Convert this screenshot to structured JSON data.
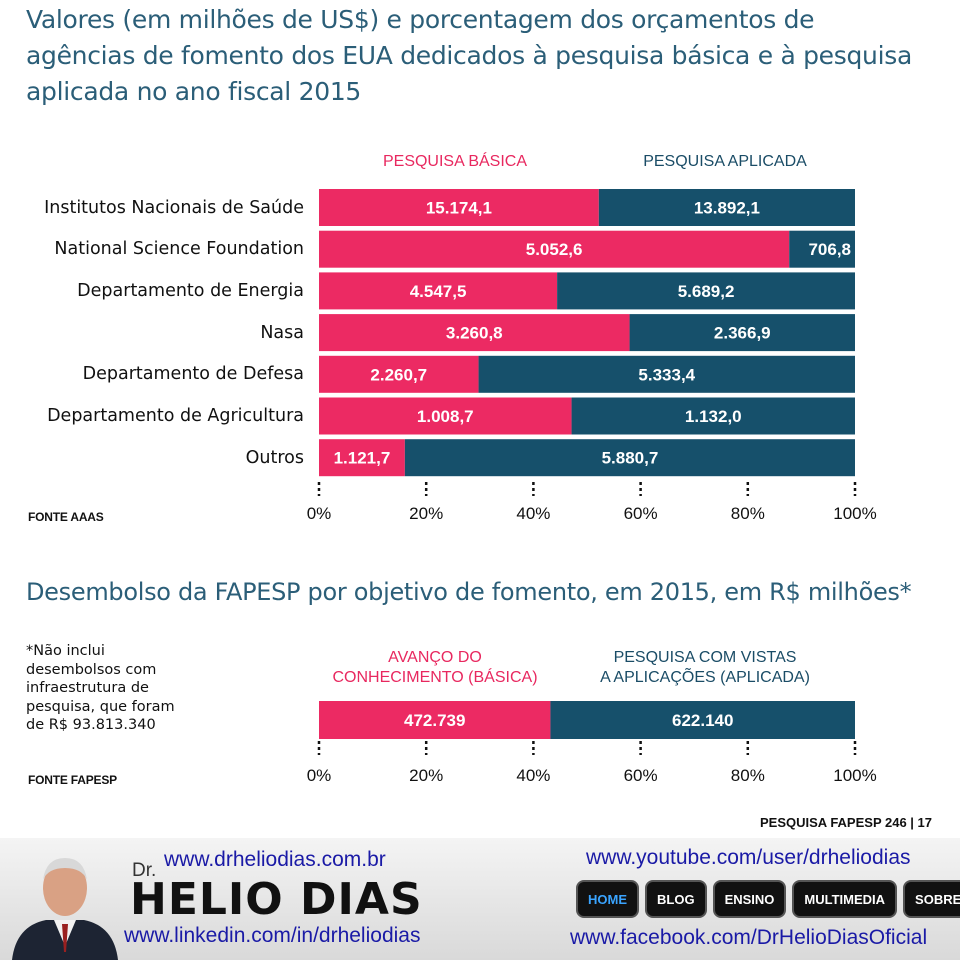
{
  "chart_data": [
    {
      "type": "bar",
      "stacked": "percent",
      "orientation": "horizontal",
      "title": "Valores (em milhões de US$) e porcentagem dos orçamentos de agências de fomento dos EUA dedicados à pesquisa básica e à pesquisa aplicada no ano fiscal 2015",
      "categories": [
        "Institutos Nacionais de Saúde",
        "National Science Foundation",
        "Departamento de Energia",
        "Nasa",
        "Departamento de Defesa",
        "Departamento de Agricultura",
        "Outros"
      ],
      "series": [
        {
          "name": "PESQUISA BÁSICA",
          "values": [
            15174.1,
            5052.6,
            4547.5,
            3260.8,
            2260.7,
            1008.7,
            1121.7
          ],
          "labels": [
            "15.174,1",
            "5.052,6",
            "4.547,5",
            "3.260,8",
            "2.260,7",
            "1.008,7",
            "1.121,7"
          ]
        },
        {
          "name": "PESQUISA APLICADA",
          "values": [
            13892.1,
            706.8,
            5689.2,
            2366.9,
            5333.4,
            1132.0,
            5880.7
          ],
          "labels": [
            "13.892,1",
            "706,8",
            "5.689,2",
            "2.366,9",
            "5.333,4",
            "1.132,0",
            "5.880,7"
          ]
        }
      ],
      "xticks": [
        "0%",
        "20%",
        "40%",
        "60%",
        "80%",
        "100%"
      ],
      "xlim": [
        0,
        100
      ],
      "source": "FONTE AAAS"
    },
    {
      "type": "bar",
      "stacked": "percent",
      "orientation": "horizontal",
      "title": "Desembolso da FAPESP por objetivo de fomento, em 2015, em R$ milhões*",
      "categories": [
        ""
      ],
      "series": [
        {
          "name": "AVANÇO DO CONHECIMENTO (BÁSICA)",
          "name_lines": [
            "AVANÇO DO",
            "CONHECIMENTO (BÁSICA)"
          ],
          "values": [
            472739
          ],
          "labels": [
            "472.739"
          ]
        },
        {
          "name": "PESQUISA COM VISTAS A APLICAÇÕES (APLICADA)",
          "name_lines": [
            "PESQUISA COM VISTAS",
            "A APLICAÇÕES (APLICADA)"
          ],
          "values": [
            622140
          ],
          "labels": [
            "622.140"
          ]
        }
      ],
      "xticks": [
        "0%",
        "20%",
        "40%",
        "60%",
        "80%",
        "100%"
      ],
      "xlim": [
        0,
        100
      ],
      "source": "FONTE FAPESP",
      "note_lines": [
        "*Não inclui",
        "desembolsos com",
        "infraestrutura de",
        "pesquisa, que foram",
        "de R$ 93.813.340"
      ]
    }
  ],
  "colors": {
    "basic": "#ec2a63",
    "applied": "#16506b",
    "title": "#2b5e78"
  },
  "page_ref": "PESQUISA FAPESP 246 | 17",
  "banner": {
    "dr": "Dr.",
    "name": "HELIO DIAS",
    "site": "www.drheliodias.com.br",
    "linkedin": "www.linkedin.com/in/drheliodias",
    "youtube": "www.youtube.com/user/drheliodias",
    "facebook": "www.facebook.com/DrHelioDiasOficial",
    "nav": [
      "HOME",
      "BLOG",
      "ENSINO",
      "MULTIMEDIA",
      "SOBRE"
    ]
  }
}
